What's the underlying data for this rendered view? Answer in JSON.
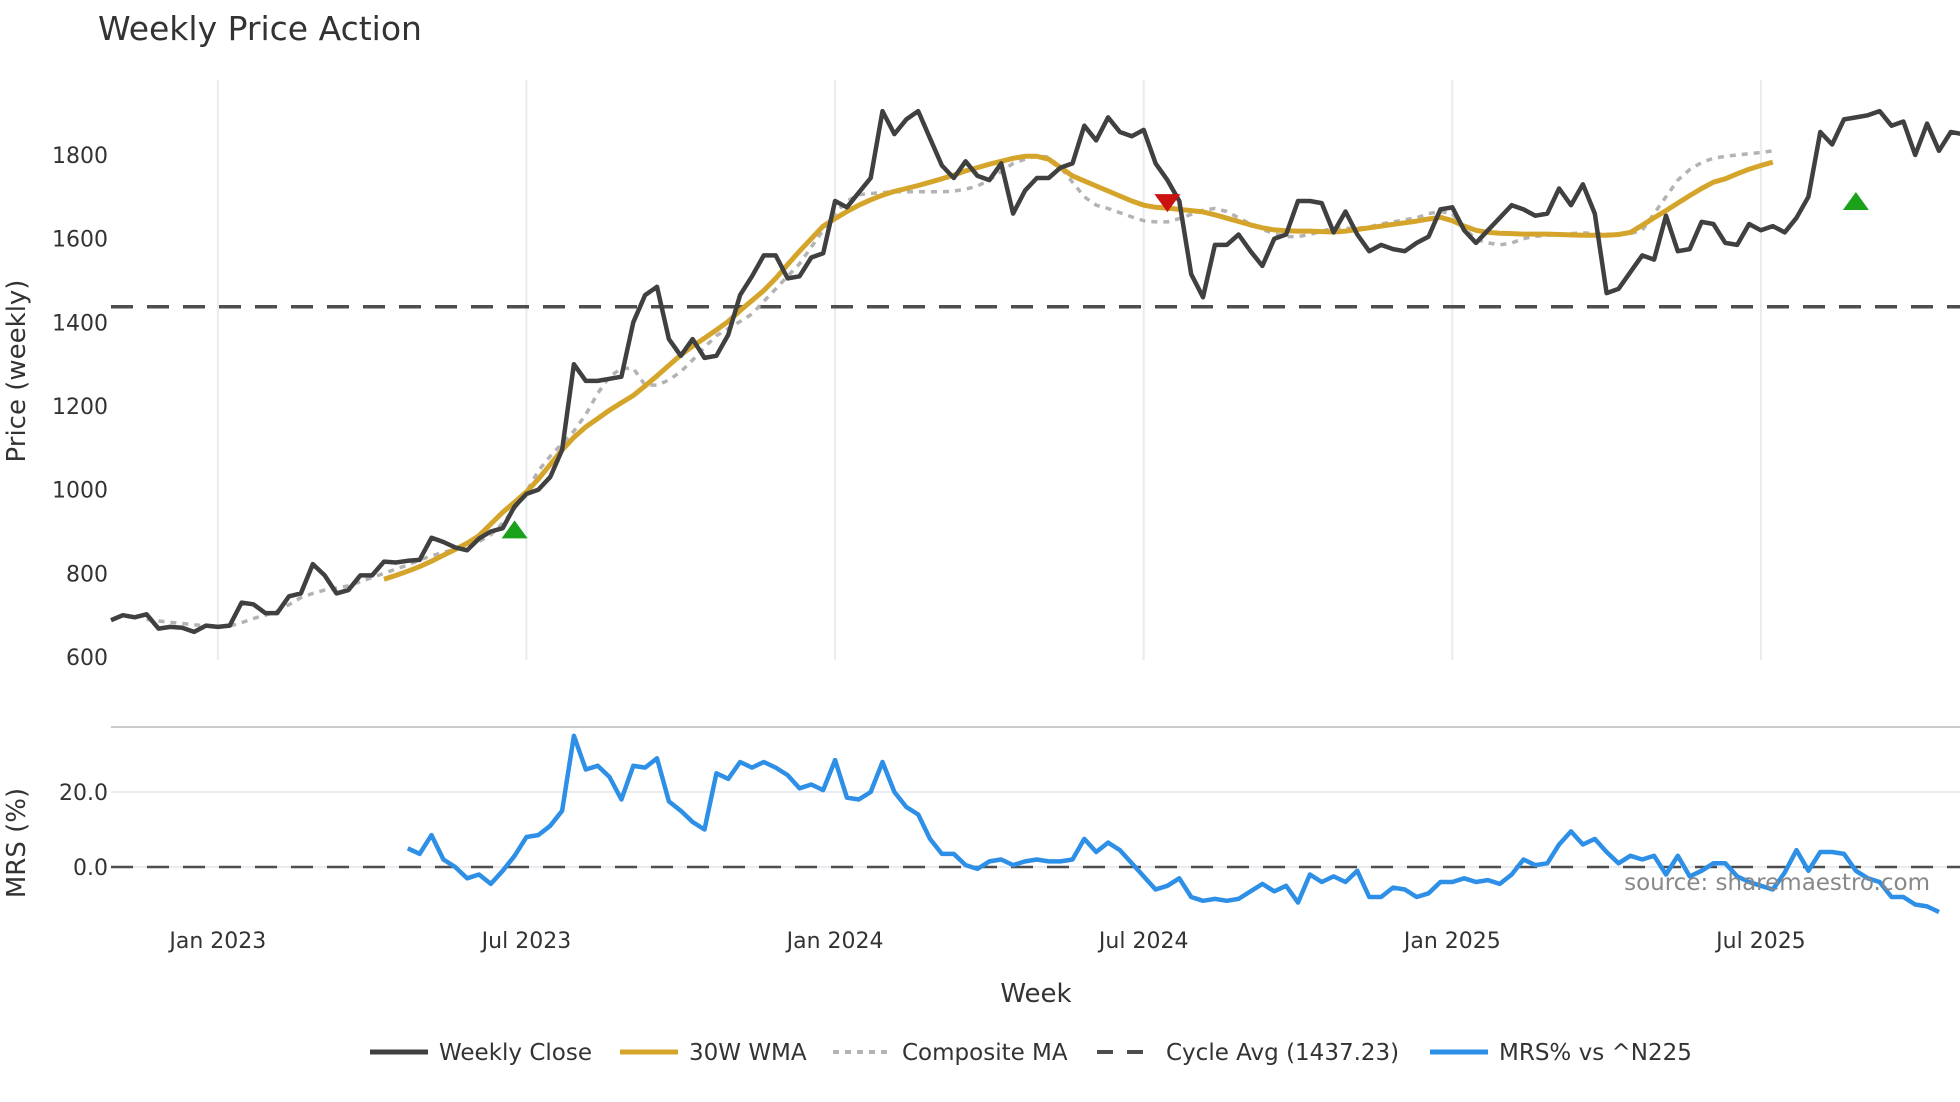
{
  "title": "Weekly Price Action",
  "watermark": "source: sharemaestro.com",
  "colors": {
    "close": "#404040",
    "wma": "#d4a52a",
    "composite": "#b3b3b3",
    "cycle": "#4d4d4d",
    "mrs": "#2e8fe6",
    "buy_marker": "#1aa31a",
    "sell_marker": "#cc1111",
    "grid": "#e8ebf0"
  },
  "legend": [
    {
      "key": "close",
      "label": "Weekly Close",
      "style": "solid"
    },
    {
      "key": "wma",
      "label": "30W WMA",
      "style": "solid"
    },
    {
      "key": "composite",
      "label": "Composite MA",
      "style": "dotted"
    },
    {
      "key": "cycle",
      "label": "Cycle Avg (1437.23)",
      "style": "dashed"
    },
    {
      "key": "mrs",
      "label": "MRS% vs ^N225",
      "style": "solid"
    }
  ],
  "chart_data": [
    {
      "type": "line",
      "title": "Weekly Price Action",
      "xlabel": "Week",
      "ylabel": "Price (weekly)",
      "ylim": [
        600,
        1980
      ],
      "yticks": [
        600,
        800,
        1000,
        1200,
        1400,
        1600,
        1800
      ],
      "xticks": [
        "Jan 2023",
        "Jul 2023",
        "Jan 2024",
        "Jul 2024",
        "Jan 2025",
        "Jul 2025"
      ],
      "xtick_week_index": [
        9,
        35,
        61,
        87,
        113,
        139
      ],
      "grid": "vertical",
      "cycle_avg": 1437.23,
      "series": [
        {
          "name": "Weekly Close",
          "start_index": 0,
          "values": [
            688,
            700,
            695,
            702,
            668,
            672,
            670,
            660,
            675,
            672,
            675,
            730,
            726,
            705,
            705,
            745,
            752,
            822,
            795,
            752,
            760,
            795,
            795,
            828,
            826,
            830,
            832,
            885,
            875,
            862,
            855,
            883,
            900,
            908,
            960,
            990,
            1000,
            1030,
            1095,
            1300,
            1260,
            1260,
            1265,
            1270,
            1400,
            1465,
            1485,
            1360,
            1320,
            1360,
            1315,
            1320,
            1370,
            1465,
            1510,
            1560,
            1560,
            1505,
            1510,
            1555,
            1565,
            1690,
            1675,
            1710,
            1745,
            1905,
            1850,
            1885,
            1905,
            1840,
            1775,
            1745,
            1785,
            1750,
            1740,
            1780,
            1660,
            1715,
            1745,
            1745,
            1770,
            1780,
            1870,
            1835,
            1890,
            1855,
            1845,
            1860,
            1780,
            1740,
            1690,
            1515,
            1460,
            1585,
            1585,
            1610,
            1570,
            1535,
            1600,
            1610,
            1690,
            1690,
            1685,
            1615,
            1665,
            1610,
            1570,
            1585,
            1575,
            1570,
            1590,
            1605,
            1670,
            1675,
            1620,
            1590,
            1620,
            1650,
            1680,
            1670,
            1655,
            1660,
            1720,
            1680,
            1730,
            1660,
            1470,
            1480,
            1520,
            1560,
            1550,
            1655,
            1570,
            1575,
            1640,
            1635,
            1590,
            1585,
            1635,
            1620,
            1630,
            1615,
            1650,
            1700,
            1855,
            1825,
            1885,
            1890,
            1895,
            1905,
            1870,
            1880,
            1800,
            1875,
            1810,
            1855,
            1850
          ]
        },
        {
          "name": "30W WMA",
          "start_index": 23,
          "values": [
            786,
            795,
            805,
            816,
            829,
            843,
            857,
            872,
            890,
            918,
            946,
            970,
            995,
            1025,
            1060,
            1095,
            1125,
            1150,
            1170,
            1190,
            1208,
            1225,
            1248,
            1272,
            1297,
            1322,
            1343,
            1362,
            1382,
            1402,
            1428,
            1452,
            1476,
            1505,
            1538,
            1570,
            1600,
            1630,
            1648,
            1665,
            1680,
            1693,
            1704,
            1713,
            1720,
            1727,
            1735,
            1743,
            1752,
            1762,
            1770,
            1778,
            1785,
            1792,
            1797,
            1797,
            1790,
            1770,
            1750,
            1738,
            1726,
            1714,
            1702,
            1690,
            1680,
            1675,
            1673,
            1670,
            1667,
            1664,
            1657,
            1649,
            1641,
            1633,
            1626,
            1621,
            1619,
            1618,
            1618,
            1617,
            1616,
            1618,
            1622,
            1626,
            1630,
            1634,
            1638,
            1642,
            1647,
            1651,
            1643,
            1630,
            1620,
            1615,
            1613,
            1612,
            1611,
            1611,
            1611,
            1610,
            1609,
            1608,
            1608,
            1608,
            1610,
            1615,
            1632,
            1650,
            1667,
            1685,
            1703,
            1720,
            1735,
            1743,
            1755,
            1766,
            1775,
            1783
          ]
        },
        {
          "name": "Composite MA",
          "start_index": 3,
          "values": [
            690,
            686,
            683,
            680,
            677,
            675,
            673,
            674,
            682,
            692,
            700,
            710,
            725,
            742,
            752,
            760,
            765,
            770,
            780,
            790,
            800,
            810,
            820,
            832,
            842,
            850,
            858,
            866,
            876,
            892,
            920,
            955,
            995,
            1045,
            1080,
            1110,
            1140,
            1180,
            1230,
            1270,
            1290,
            1290,
            1250,
            1250,
            1262,
            1282,
            1310,
            1340,
            1368,
            1385,
            1402,
            1420,
            1450,
            1480,
            1510,
            1540,
            1580,
            1620,
            1660,
            1690,
            1705,
            1708,
            1710,
            1712,
            1712,
            1712,
            1712,
            1712,
            1714,
            1718,
            1726,
            1740,
            1760,
            1780,
            1790,
            1798,
            1795,
            1770,
            1735,
            1700,
            1680,
            1672,
            1662,
            1652,
            1643,
            1640,
            1640,
            1648,
            1658,
            1668,
            1672,
            1665,
            1650,
            1635,
            1622,
            1612,
            1605,
            1605,
            1610,
            1618,
            1625,
            1625,
            1625,
            1628,
            1635,
            1640,
            1645,
            1650,
            1660,
            1665,
            1660,
            1625,
            1598,
            1590,
            1585,
            1590,
            1600,
            1606,
            1608,
            1610,
            1612,
            1614,
            1612,
            1611,
            1610,
            1612,
            1620,
            1660,
            1700,
            1740,
            1765,
            1782,
            1792,
            1797,
            1800,
            1803,
            1806,
            1810
          ]
        },
        {
          "name": "Signals",
          "markers": [
            {
              "type": "buy",
              "index": 34,
              "value": 905
            },
            {
              "type": "sell",
              "index": 89,
              "value": 1685
            },
            {
              "type": "buy",
              "index": 147,
              "value": 1690
            }
          ]
        }
      ]
    },
    {
      "type": "line",
      "title": "",
      "xlabel": "Week",
      "ylabel": "MRS (%)",
      "ylim": [
        -16,
        36
      ],
      "yticks": [
        0.0,
        20.0
      ],
      "ytick_labels": [
        "0.0",
        "20.0"
      ],
      "zero_line": 0.0,
      "series": [
        {
          "name": "MRS% vs ^N225",
          "start_index": 25,
          "values": [
            5,
            3.5,
            8.5,
            2,
            0,
            -3,
            -2,
            -4.5,
            -1,
            3,
            8,
            8.5,
            11,
            15,
            35,
            26,
            27,
            24,
            18,
            27,
            26.5,
            29,
            17.5,
            15,
            12,
            10,
            25,
            23.5,
            28,
            26.5,
            28,
            26.5,
            24.5,
            21,
            22,
            20.5,
            28.5,
            18.5,
            18,
            20,
            28,
            20,
            16,
            14,
            7.5,
            3.5,
            3.5,
            0.5,
            -0.5,
            1.5,
            2,
            0.5,
            1.5,
            2,
            1.5,
            1.5,
            2,
            7.5,
            4,
            6.5,
            4.5,
            1,
            -2.5,
            -6,
            -5,
            -3,
            -8,
            -9,
            -8.5,
            -9,
            -8.5,
            -6.5,
            -4.5,
            -6.5,
            -5,
            -9.5,
            -2,
            -4,
            -2.5,
            -4,
            -1,
            -8,
            -8,
            -5.5,
            -6,
            -8,
            -7,
            -4,
            -4,
            -3,
            -4,
            -3.5,
            -4.5,
            -2,
            2,
            0.5,
            1,
            6,
            9.5,
            6,
            7.5,
            4,
            1,
            3,
            2,
            3,
            -2,
            3,
            -2.5,
            -1,
            1,
            1,
            -2.5,
            -4,
            -5,
            -6,
            -1.5,
            4.5,
            -1,
            4,
            4,
            3.5,
            -1,
            -3,
            -4,
            -8,
            -8,
            -10,
            -10.5,
            -12
          ]
        }
      ]
    }
  ]
}
